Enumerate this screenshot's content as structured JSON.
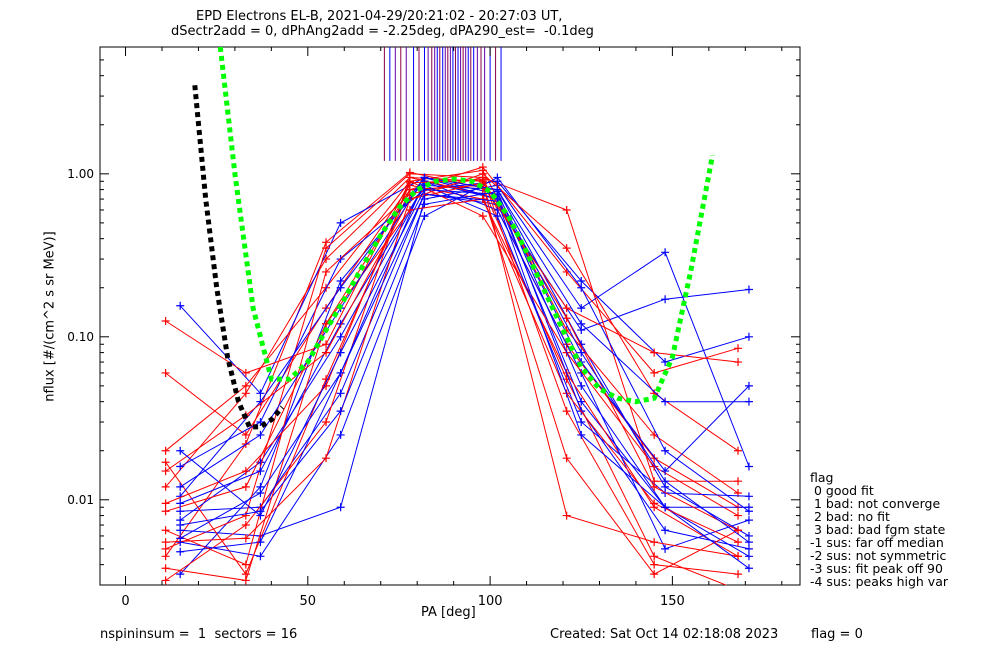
{
  "chart_data": {
    "type": "line",
    "title": "EPD Electrons EL-B, 2021-04-29/20:21:02 - 20:27:03 UT,",
    "subtitle": "dSectr2add = 0, dPhAng2add = -2.25deg, dPA290_est=  -0.1deg",
    "xlabel": "PA [deg]",
    "ylabel": "nflux [#/(cm^2 s sr MeV)]",
    "xlim": [
      -7,
      185
    ],
    "ylim": [
      0.003,
      6.0
    ],
    "yscale": "log",
    "xticks": [
      "0",
      "50",
      "100",
      "150"
    ],
    "yticks": [
      "0.01",
      "0.10",
      "1.00"
    ],
    "grid": false,
    "series": [
      {
        "color": "#ff0000",
        "x": [
          11,
          33,
          55,
          78,
          98,
          121,
          145,
          168
        ],
        "y": [
          0.0045,
          0.022,
          0.38,
          1.02,
          0.82,
          0.055,
          0.0045,
          0.0028
        ]
      },
      {
        "color": "#0000ff",
        "x": [
          15,
          37,
          59,
          82,
          102,
          125,
          148,
          171
        ],
        "y": [
          0.0035,
          0.012,
          0.22,
          0.9,
          0.7,
          0.04,
          0.009,
          0.0045
        ]
      },
      {
        "color": "#ff0000",
        "x": [
          11,
          33,
          55,
          78,
          98,
          121,
          145,
          168
        ],
        "y": [
          0.012,
          0.045,
          0.3,
          0.95,
          0.9,
          0.09,
          0.018,
          0.009
        ]
      },
      {
        "color": "#0000ff",
        "x": [
          15,
          37,
          59,
          82,
          102,
          125,
          148,
          171
        ],
        "y": [
          0.0075,
          0.017,
          0.1,
          0.85,
          0.8,
          0.09,
          0.012,
          0.006
        ]
      },
      {
        "color": "#ff0000",
        "x": [
          11,
          33,
          55,
          78,
          98,
          121,
          145,
          168
        ],
        "y": [
          0.06,
          0.025,
          0.15,
          0.85,
          0.7,
          0.06,
          0.009,
          0.0045
        ]
      },
      {
        "color": "#0000ff",
        "x": [
          15,
          37,
          59,
          82,
          102,
          125,
          148,
          171
        ],
        "y": [
          0.155,
          0.045,
          0.5,
          0.95,
          0.75,
          0.035,
          0.0065,
          0.005
        ]
      },
      {
        "color": "#ff0000",
        "x": [
          11,
          33,
          55,
          78,
          98,
          121,
          145,
          168
        ],
        "y": [
          0.125,
          0.06,
          0.09,
          0.9,
          1.05,
          0.11,
          0.025,
          0.011
        ]
      },
      {
        "color": "#0000ff",
        "x": [
          15,
          37,
          59,
          82,
          102,
          125,
          148,
          171
        ],
        "y": [
          0.0085,
          0.009,
          0.045,
          0.75,
          0.65,
          0.11,
          0.17,
          0.195
        ]
      },
      {
        "color": "#ff0000",
        "x": [
          11,
          33,
          55,
          78,
          98,
          121,
          145,
          168
        ],
        "y": [
          0.005,
          0.008,
          0.35,
          1.0,
          0.95,
          0.6,
          0.013,
          0.013
        ]
      },
      {
        "color": "#0000ff",
        "x": [
          15,
          37,
          59,
          82,
          102,
          125,
          148,
          171
        ],
        "y": [
          0.0065,
          0.006,
          0.009,
          0.7,
          0.85,
          0.15,
          0.33,
          0.016
        ]
      },
      {
        "color": "#ff0000",
        "x": [
          11,
          33,
          55,
          78,
          98,
          121,
          145,
          168
        ],
        "y": [
          0.017,
          0.0035,
          0.055,
          0.8,
          1.1,
          0.25,
          0.06,
          0.085
        ]
      },
      {
        "color": "#0000ff",
        "x": [
          15,
          37,
          59,
          82,
          102,
          125,
          148,
          171
        ],
        "y": [
          0.0055,
          0.0045,
          0.025,
          0.55,
          0.95,
          0.2,
          0.02,
          0.0085
        ]
      },
      {
        "color": "#ff0000",
        "x": [
          11,
          33,
          55,
          78,
          98,
          121,
          145,
          168
        ],
        "y": [
          0.0032,
          0.007,
          0.03,
          0.95,
          0.75,
          0.018,
          0.0035,
          0.0065
        ]
      },
      {
        "color": "#0000ff",
        "x": [
          15,
          37,
          59,
          82,
          102,
          125,
          148,
          171
        ],
        "y": [
          0.0048,
          0.0055,
          0.06,
          0.9,
          0.6,
          0.06,
          0.005,
          0.0075
        ]
      },
      {
        "color": "#ff0000",
        "x": [
          11,
          33,
          55,
          78,
          98,
          121,
          145,
          168
        ],
        "y": [
          0.02,
          0.05,
          0.2,
          0.9,
          0.55,
          0.08,
          0.016,
          0.008
        ]
      },
      {
        "color": "#0000ff",
        "x": [
          15,
          37,
          59,
          82,
          102,
          125,
          148,
          171
        ],
        "y": [
          0.016,
          0.03,
          0.3,
          0.8,
          0.9,
          0.22,
          0.07,
          0.1
        ]
      },
      {
        "color": "#ff0000",
        "x": [
          11,
          33,
          55,
          78,
          98,
          121,
          145,
          168
        ],
        "y": [
          0.0085,
          0.012,
          0.12,
          0.8,
          0.85,
          0.15,
          0.08,
          0.07
        ]
      },
      {
        "color": "#0000ff",
        "x": [
          15,
          37,
          59,
          82,
          102,
          125,
          148,
          171
        ],
        "y": [
          0.0105,
          0.04,
          0.2,
          0.95,
          0.7,
          0.07,
          0.015,
          0.05
        ]
      },
      {
        "color": "#ff0000",
        "x": [
          11,
          33,
          55,
          78,
          98,
          121,
          145,
          168
        ],
        "y": [
          0.0065,
          0.004,
          0.25,
          0.75,
          0.95,
          0.035,
          0.004,
          0.0035
        ]
      },
      {
        "color": "#0000ff",
        "x": [
          15,
          37,
          59,
          82,
          102,
          125,
          148,
          171
        ],
        "y": [
          0.0095,
          0.015,
          0.12,
          0.85,
          0.55,
          0.03,
          0.011,
          0.0105
        ]
      },
      {
        "color": "#ff0000",
        "x": [
          11,
          33,
          55,
          78,
          98,
          121,
          145,
          168
        ],
        "y": [
          0.0055,
          0.0058,
          0.018,
          0.7,
          0.88,
          0.008,
          0.0055,
          0.0045
        ]
      },
      {
        "color": "#0000ff",
        "x": [
          15,
          37,
          59,
          82,
          102,
          125,
          148,
          171
        ],
        "y": [
          0.007,
          0.0085,
          0.035,
          0.65,
          0.78,
          0.05,
          0.009,
          0.0038
        ]
      },
      {
        "color": "#ff0000",
        "x": [
          11,
          33,
          55,
          78,
          98,
          121,
          145,
          168
        ],
        "y": [
          0.0038,
          0.0032,
          0.12,
          0.6,
          0.7,
          0.045,
          0.0095,
          0.0055
        ]
      },
      {
        "color": "#0000ff",
        "x": [
          15,
          37,
          59,
          82,
          102,
          125,
          148,
          171
        ],
        "y": [
          0.0058,
          0.011,
          0.06,
          0.75,
          0.68,
          0.025,
          0.009,
          0.009
        ]
      },
      {
        "color": "#ff0000",
        "x": [
          11,
          33,
          55,
          78,
          98,
          121,
          145,
          168
        ],
        "y": [
          0.015,
          0.033,
          0.08,
          0.7,
          1.0,
          0.35,
          0.045,
          0.02
        ]
      },
      {
        "color": "#0000ff",
        "x": [
          15,
          37,
          59,
          82,
          102,
          125,
          148,
          171
        ],
        "y": [
          0.012,
          0.025,
          0.15,
          0.95,
          0.8,
          0.12,
          0.04,
          0.04
        ]
      },
      {
        "color": "#ff0000",
        "x": [
          11,
          33,
          55,
          78,
          98,
          121,
          145,
          168
        ],
        "y": [
          0.0095,
          0.015,
          0.05,
          0.88,
          0.92,
          0.13,
          0.012,
          0.0065
        ]
      },
      {
        "color": "#0000ff",
        "x": [
          15,
          37,
          59,
          82,
          102,
          125,
          148,
          171
        ],
        "y": [
          0.02,
          0.008,
          0.08,
          0.8,
          0.75,
          0.08,
          0.013,
          0.0055
        ]
      }
    ],
    "model_curves": [
      {
        "color": "#00ff00",
        "style": "dotted",
        "x": [
          26,
          30,
          35,
          40,
          45,
          50,
          55,
          60,
          65,
          70,
          75,
          80,
          85,
          90,
          95,
          100,
          105,
          110,
          115,
          120,
          125,
          130,
          135,
          140,
          145,
          150,
          155,
          161
        ],
        "y": [
          6.0,
          1.0,
          0.15,
          0.055,
          0.055,
          0.07,
          0.11,
          0.17,
          0.27,
          0.42,
          0.62,
          0.8,
          0.9,
          0.93,
          0.9,
          0.78,
          0.55,
          0.33,
          0.19,
          0.11,
          0.065,
          0.048,
          0.042,
          0.04,
          0.042,
          0.075,
          0.25,
          1.3
        ]
      },
      {
        "color": "#000000",
        "style": "dotted",
        "x": [
          19,
          22,
          25,
          28,
          31,
          34,
          37,
          40,
          43
        ],
        "y": [
          3.5,
          0.7,
          0.2,
          0.075,
          0.04,
          0.028,
          0.028,
          0.031,
          0.037
        ]
      }
    ],
    "annotations": [
      "nspininsum =  1  sectors = 16",
      "Created: Sat Oct 14 02:18:08 2023",
      "flag = 0"
    ],
    "legend": {
      "title": "flag",
      "placement": "right",
      "entries": [
        " 0 good fit",
        " 1 bad: not converge",
        " 2 bad: no fit",
        " 3 bad: bad fgm state",
        "-1 sus: far off median",
        "-2 sus: not symmetric",
        "-3 sus: fit peak off 90",
        "-4 sus: peaks high var"
      ]
    }
  }
}
